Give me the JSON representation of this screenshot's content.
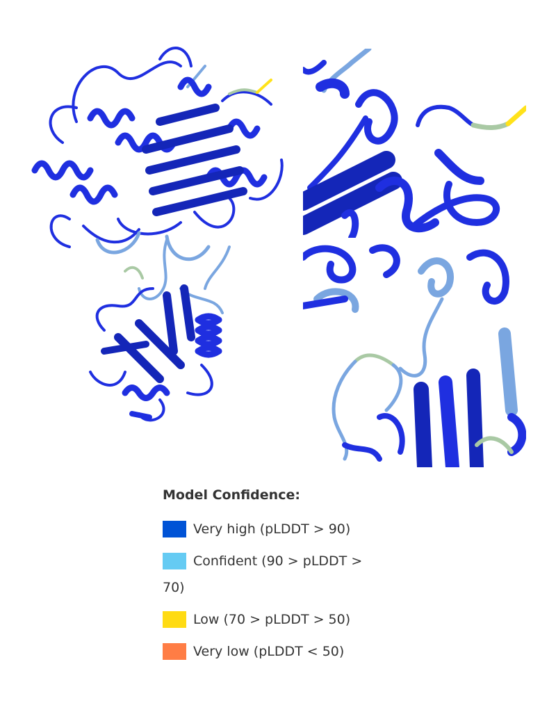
{
  "legend": {
    "title": "Model Confidence:",
    "items": [
      {
        "label": "Very high (pLDDT > 90)",
        "color": "#0053d6"
      },
      {
        "label": "Confident (90 > pLDDT > 70)",
        "color": "#65cbf3"
      },
      {
        "label": "Low (70 > pLDDT > 50)",
        "color": "#ffdb13"
      },
      {
        "label": "Very low (pLDDT < 50)",
        "color": "#ff7d45"
      }
    ]
  },
  "ribbon_colors": {
    "very_high": "#1f2fe0",
    "very_high_dark": "#1426b8",
    "confident": "#7aa6e0",
    "low_green": "#a9c9a4",
    "low": "#ffe21a"
  }
}
